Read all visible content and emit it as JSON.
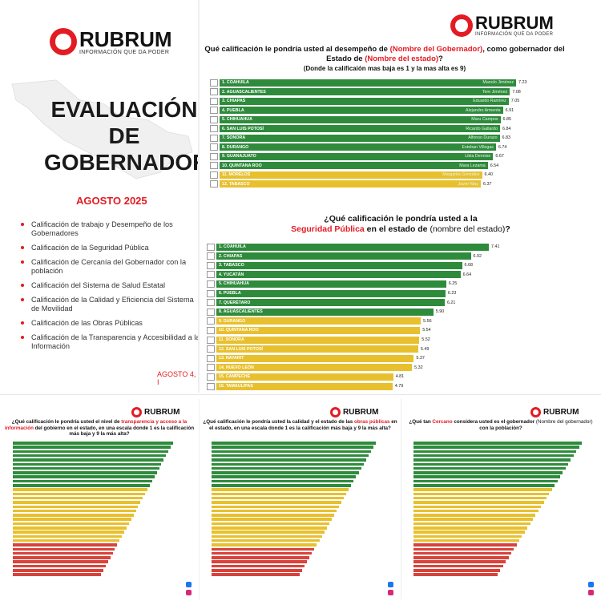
{
  "brand": {
    "name": "RUBRUM",
    "tagline": "INFORMACIÓN QUE DA PODER",
    "color": "#e31b23"
  },
  "cover": {
    "title_lines": [
      "EVALUACIÓN",
      "DE",
      "GOBERNADORES"
    ],
    "date": "AGOSTO 2025",
    "items": [
      "Calificación de trabajo y Desempeño de los Gobernadores",
      "Calificación de la Seguridad Pública",
      "Calificación de Cercanía del Gobernador con la población",
      "Calificación del Sistema de Salud Estatal",
      "Calificación de la Calidad y Eficiencia del Sistema de Movilidad",
      "Calificación de las Obras Públicas",
      "Calificación de la Transparencia y Accesibilidad a la Información"
    ],
    "footer": "AGOSTO 4, I"
  },
  "chart1": {
    "title_a": "Qué calificación le pondría usted al desempeño de ",
    "title_hl1": "(Nombre del Gobernador)",
    "title_b": ", como gobernador del Estado de ",
    "title_hl2": "(Nombre del estado)",
    "title_c": "?",
    "subtitle": "(Donde la calificaión mas baja es 1 y la mas alta es 9)"
  },
  "chart2": {
    "title_a": "¿Qué calificación le pondría usted a la",
    "title_hl": "Seguridad Pública",
    "title_b": " en el estado de ",
    "title_nb": "(nombre del estado)",
    "title_c": "?"
  },
  "chart_data": [
    {
      "type": "bar",
      "categories": [
        "1. COAHUILA",
        "2. AGUASCALIENTES",
        "3. CHIAPAS",
        "4. PUEBLA",
        "5. CHIHUAHUA",
        "6. SAN LUIS POTOSÍ",
        "7. SONORA",
        "8. DURANGO",
        "9. GUANAJUATO",
        "10. QUINTANA ROO",
        "11. MORELOS",
        "12. TABASCO"
      ],
      "governors": [
        "Manolo Jiménez",
        "Tere Jiménez",
        "Eduardo Ramírez",
        "Alejandro Armenta",
        "Maru Campos",
        "Ricardo Gallardo",
        "Alfonso Durazo",
        "Esteban Villegas",
        "Libia Dennise",
        "Mara Lezama",
        "Margarita González",
        "Javier May"
      ],
      "values": [
        7.23,
        7.08,
        7.05,
        6.91,
        6.85,
        6.84,
        6.83,
        6.74,
        6.67,
        6.54,
        6.4,
        6.37
      ],
      "colors": [
        "green",
        "green",
        "green",
        "green",
        "green",
        "green",
        "green",
        "green",
        "green",
        "green",
        "yellow",
        "yellow"
      ]
    },
    {
      "type": "bar",
      "categories": [
        "1. COAHUILA",
        "2. CHIAPAS",
        "3. TABASCO",
        "4. YUCATÁN",
        "5. CHIHUAHUA",
        "6. PUEBLA",
        "7. QUERÉTARO",
        "8. AGUASCALIENTES",
        "9. DURANGO",
        "10. QUINTANA ROO",
        "11. SONORA",
        "12. SAN LUIS POTOSÍ",
        "13. NAYARIT",
        "14. NUEVO LEÓN",
        "15. CAMPECHE",
        "16. TAMAULIPAS"
      ],
      "values": [
        7.41,
        6.92,
        6.68,
        6.64,
        6.25,
        6.23,
        6.21,
        5.9,
        5.56,
        5.54,
        5.52,
        5.49,
        5.37,
        5.32,
        4.81,
        4.79
      ],
      "colors": [
        "green",
        "green",
        "green",
        "green",
        "green",
        "green",
        "green",
        "green",
        "yellow",
        "yellow",
        "yellow",
        "yellow",
        "yellow",
        "yellow",
        "yellow",
        "yellow"
      ]
    }
  ],
  "mini1": {
    "title_a": "¿Qué calificación le pondría usted el nivel de ",
    "title_hl": "transparencia y acceso a la información",
    "title_b": " del gobierno en el estado, en una escala donde 1 es la calificación más baja y 9 la más alta?"
  },
  "mini2": {
    "title_a": "¿Qué calificación le pondría usted la calidad y el estado de las ",
    "title_hl": "obras públicas",
    "title_b": " en el estado, en una escala donde 1 es la calificación más baja y 9 la más alta?"
  },
  "mini3": {
    "title_a": "¿Qué tan ",
    "title_hl": "Cercano",
    "title_b": " considera usted es el gobernador ",
    "title_nb": "(Nombre del gobernador)",
    "title_c": " con la población?"
  }
}
